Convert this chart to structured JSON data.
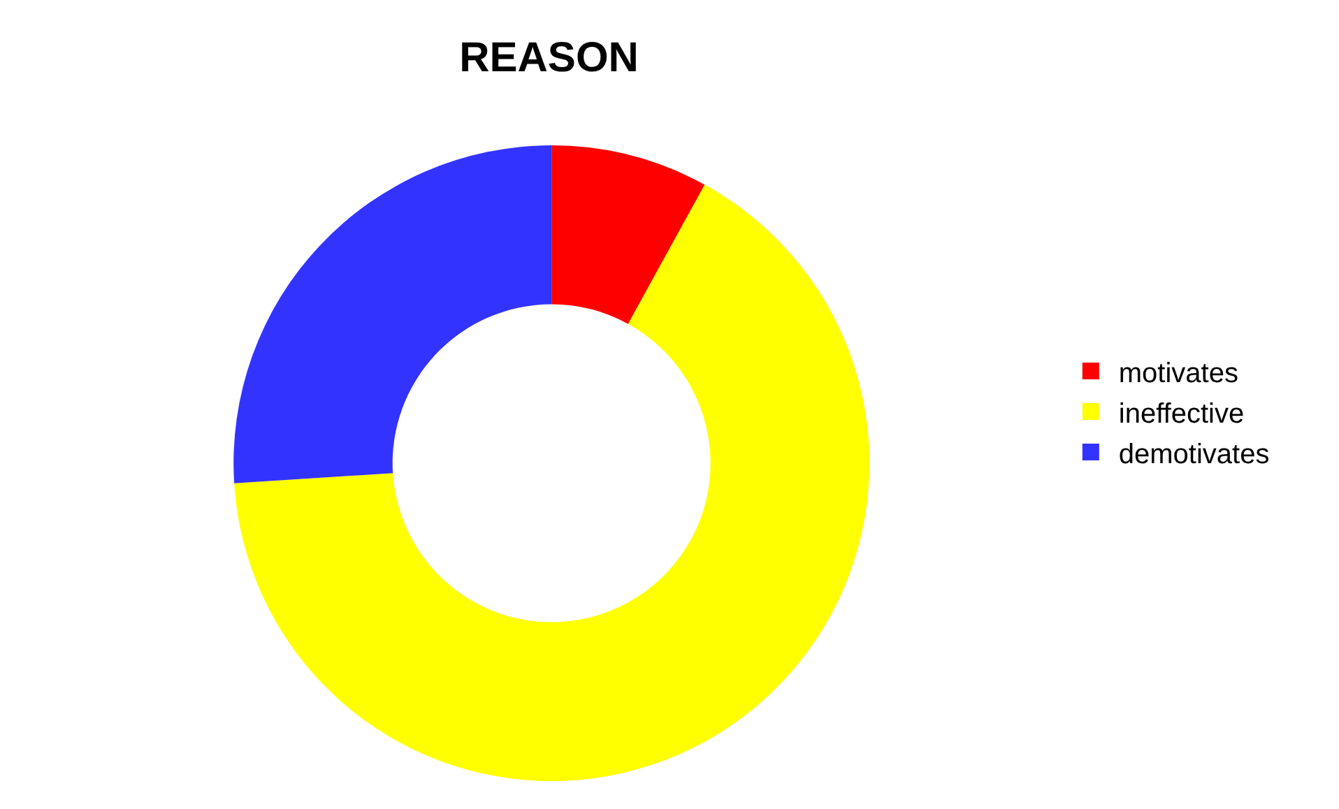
{
  "chart_data": {
    "type": "donut",
    "title": "REASON",
    "categories": [
      "motivates",
      "ineffective",
      "demotivates"
    ],
    "values": [
      8,
      66,
      26
    ],
    "colors": [
      "#ff0000",
      "#ffff00",
      "#3333ff"
    ],
    "legend": "right"
  }
}
